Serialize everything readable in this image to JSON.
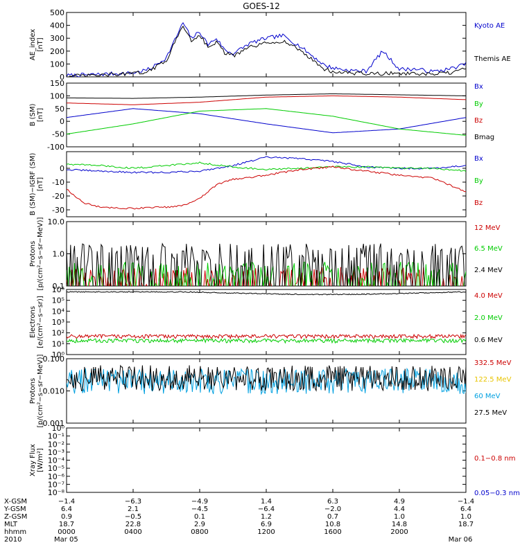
{
  "chart_data": {
    "type": "line",
    "title": "GOES-12",
    "panels": [
      {
        "id": "ae",
        "ylabel": [
          "AE_index",
          "[nT]"
        ],
        "scale": "linear",
        "ylim": [
          0,
          500
        ],
        "ticks": [
          "0",
          "100",
          "200",
          "300",
          "400",
          "500"
        ],
        "tick_values": [
          0,
          100,
          200,
          300,
          400,
          500
        ],
        "series": [
          {
            "name": "Kyoto AE",
            "color": "#0000cc",
            "x": [
              0,
              1,
              2,
              3,
              4,
              5,
              6,
              7,
              7.5,
              8,
              8.5,
              9,
              9.5,
              10,
              11,
              12,
              13,
              14,
              15,
              15.5,
              16,
              17,
              18,
              19,
              20,
              21,
              22,
              23,
              24
            ],
            "y": [
              10,
              15,
              20,
              25,
              30,
              60,
              150,
              420,
              300,
              350,
              250,
              300,
              210,
              180,
              260,
              300,
              320,
              240,
              140,
              90,
              70,
              50,
              45,
              200,
              60,
              60,
              40,
              60,
              100
            ]
          },
          {
            "name": "Themis AE",
            "color": "#000000",
            "x": [
              0,
              1,
              2,
              3,
              4,
              5,
              6,
              7,
              7.5,
              8,
              8.5,
              9,
              9.5,
              10,
              11,
              12,
              13,
              14,
              15,
              15.5,
              16,
              17,
              18,
              19,
              20,
              21,
              22,
              23,
              24
            ],
            "y": [
              5,
              8,
              12,
              20,
              25,
              45,
              130,
              400,
              280,
              330,
              230,
              270,
              190,
              160,
              230,
              260,
              280,
              210,
              110,
              60,
              40,
              30,
              25,
              25,
              30,
              20,
              20,
              30,
              60
            ]
          }
        ]
      },
      {
        "id": "bsm",
        "ylabel": [
          "B (SM)",
          "[nT]"
        ],
        "scale": "linear",
        "ylim": [
          -100,
          150
        ],
        "ticks": [
          "-100",
          "-50",
          "0",
          "50",
          "100",
          "150"
        ],
        "tick_values": [
          -100,
          -50,
          0,
          50,
          100,
          150
        ],
        "series": [
          {
            "name": "Bx",
            "color": "#0000cc",
            "x": [
              0,
              4,
              8,
              12,
              16,
              20,
              24
            ],
            "y": [
              15,
              50,
              30,
              -10,
              -45,
              -30,
              15
            ]
          },
          {
            "name": "By",
            "color": "#00cc00",
            "x": [
              0,
              4,
              8,
              12,
              16,
              20,
              24
            ],
            "y": [
              -50,
              -10,
              40,
              50,
              20,
              -30,
              -55
            ]
          },
          {
            "name": "Bz",
            "color": "#cc0000",
            "x": [
              0,
              4,
              8,
              12,
              16,
              20,
              24
            ],
            "y": [
              72,
              65,
              75,
              95,
              100,
              95,
              85
            ]
          },
          {
            "name": "Bmag",
            "color": "#000000",
            "x": [
              0,
              4,
              8,
              12,
              16,
              20,
              24
            ],
            "y": [
              92,
              90,
              95,
              103,
              108,
              104,
              100
            ]
          }
        ]
      },
      {
        "id": "bgrf",
        "ylabel": [
          "B (SM)−IGRF (SM)",
          "[nT]"
        ],
        "scale": "linear",
        "ylim": [
          -35,
          12
        ],
        "ticks": [
          "-30",
          "-20",
          "-10",
          "0"
        ],
        "tick_values": [
          -30,
          -20,
          -10,
          0
        ],
        "series": [
          {
            "name": "Bx",
            "color": "#0000cc",
            "x": [
              0,
              2,
              4,
              6,
              8,
              10,
              11,
              12,
              14,
              16,
              18,
              20,
              22,
              24
            ],
            "y": [
              -1,
              -2,
              -3,
              -3,
              -2,
              2,
              5,
              8,
              7,
              5,
              1,
              0,
              0,
              2
            ]
          },
          {
            "name": "By",
            "color": "#00cc00",
            "x": [
              0,
              2,
              4,
              6,
              8,
              10,
              11,
              12,
              14,
              16,
              18,
              20,
              22,
              24
            ],
            "y": [
              3,
              2,
              0,
              2,
              4,
              1,
              0,
              -1,
              0,
              1,
              1,
              0,
              0,
              -2
            ]
          },
          {
            "name": "Bz",
            "color": "#cc0000",
            "x": [
              0,
              1,
              2,
              4,
              6,
              7,
              8,
              9,
              10,
              12,
              14,
              16,
              18,
              20,
              22,
              24
            ],
            "y": [
              -15,
              -25,
              -28,
              -29,
              -28,
              -27,
              -22,
              -12,
              -8,
              -5,
              -1,
              1,
              -2,
              -5,
              -7,
              -17
            ]
          }
        ]
      },
      {
        "id": "protons1",
        "ylabel": [
          "Protons",
          "[p/(cm²−s−sr−MeV)]"
        ],
        "scale": "log",
        "ylim": [
          0.1,
          10
        ],
        "ticks": [
          "0.1",
          "1.0",
          "10.0"
        ],
        "tick_values": [
          0.1,
          1,
          10
        ],
        "series": [
          {
            "name": "12 MeV",
            "color": "#cc0000",
            "level": 0.11
          },
          {
            "name": "6.5 MeV",
            "color": "#00cc00",
            "level": 0.16
          },
          {
            "name": "2.4 MeV",
            "color": "#000000",
            "level": 0.6
          }
        ]
      },
      {
        "id": "electrons",
        "ylabel": [
          "Electrons",
          "[e/(cm²−s−sr)]"
        ],
        "scale": "log",
        "ylim": [
          1,
          1000000
        ],
        "ticks": [
          "10⁰",
          "10¹",
          "10²",
          "10³",
          "10⁴",
          "10⁵",
          "10⁶"
        ],
        "tick_values": [
          1,
          10,
          100,
          1000,
          10000,
          100000,
          1000000
        ],
        "series": [
          {
            "name": "4.0 MeV",
            "color": "#cc0000",
            "level": 50
          },
          {
            "name": "2.0 MeV",
            "color": "#00cc00",
            "level": 20
          },
          {
            "name": "0.6 MeV",
            "color": "#000000",
            "level": 600000
          }
        ]
      },
      {
        "id": "protons2",
        "ylabel": [
          "Protons",
          "[p/(cm²−s−sr−MeV)]"
        ],
        "scale": "log",
        "ylim": [
          0.001,
          0.1
        ],
        "ticks": [
          "0.001",
          "0.010",
          "0.100"
        ],
        "tick_values": [
          0.001,
          0.01,
          0.1
        ],
        "series": [
          {
            "name": "332.5 MeV",
            "color": "#cc0000"
          },
          {
            "name": "122.5 MeV",
            "color": "#e8c400"
          },
          {
            "name": "60 MeV",
            "color": "#00a0e0",
            "level": 0.02
          },
          {
            "name": "27.5 MeV",
            "color": "#000000",
            "level": 0.025
          }
        ]
      },
      {
        "id": "xray",
        "ylabel": [
          "Xray Flux",
          "[W/m²]"
        ],
        "scale": "log",
        "ylim": [
          1e-08,
          1
        ],
        "ticks": [
          "10⁻⁸",
          "10⁻⁷",
          "10⁻⁶",
          "10⁻⁵",
          "10⁻⁴",
          "10⁻³",
          "10⁻²",
          "10⁻¹",
          "10⁰"
        ],
        "tick_values": [
          1e-08,
          1e-07,
          1e-06,
          1e-05,
          0.0001,
          0.001,
          0.01,
          0.1,
          1
        ],
        "series": [
          {
            "name": "0.1−0.8 nm",
            "color": "#cc0000"
          },
          {
            "name": "0.05−0.3 nm",
            "color": "#0000cc"
          }
        ]
      }
    ],
    "xaxis": {
      "range": [
        0,
        24
      ],
      "units": "hours",
      "row_labels": [
        "X-GSM",
        "Y-GSM",
        "Z-GSM",
        "MLT",
        "hhmm",
        "2010"
      ],
      "columns": [
        {
          "x": 0,
          "vals": [
            "−1.4",
            "6.4",
            "0.9",
            "18.7",
            "0000",
            "Mar 05"
          ]
        },
        {
          "x": 4,
          "vals": [
            "−6.3",
            "2.1",
            "−0.5",
            "22.8",
            "0400",
            ""
          ]
        },
        {
          "x": 8,
          "vals": [
            "−4.9",
            "−4.5",
            "0.1",
            "2.9",
            "0800",
            ""
          ]
        },
        {
          "x": 12,
          "vals": [
            "1.4",
            "−6.4",
            "1.2",
            "6.9",
            "1200",
            ""
          ]
        },
        {
          "x": 16,
          "vals": [
            "6.3",
            "−2.0",
            "0.7",
            "10.8",
            "1600",
            ""
          ]
        },
        {
          "x": 20,
          "vals": [
            "4.9",
            "4.4",
            "1.0",
            "14.8",
            "2000",
            ""
          ]
        },
        {
          "x": 24,
          "vals": [
            "−1.4",
            "6.4",
            "1.0",
            "18.7",
            "",
            ""
          ]
        }
      ],
      "end_label": "Mar 06"
    }
  }
}
